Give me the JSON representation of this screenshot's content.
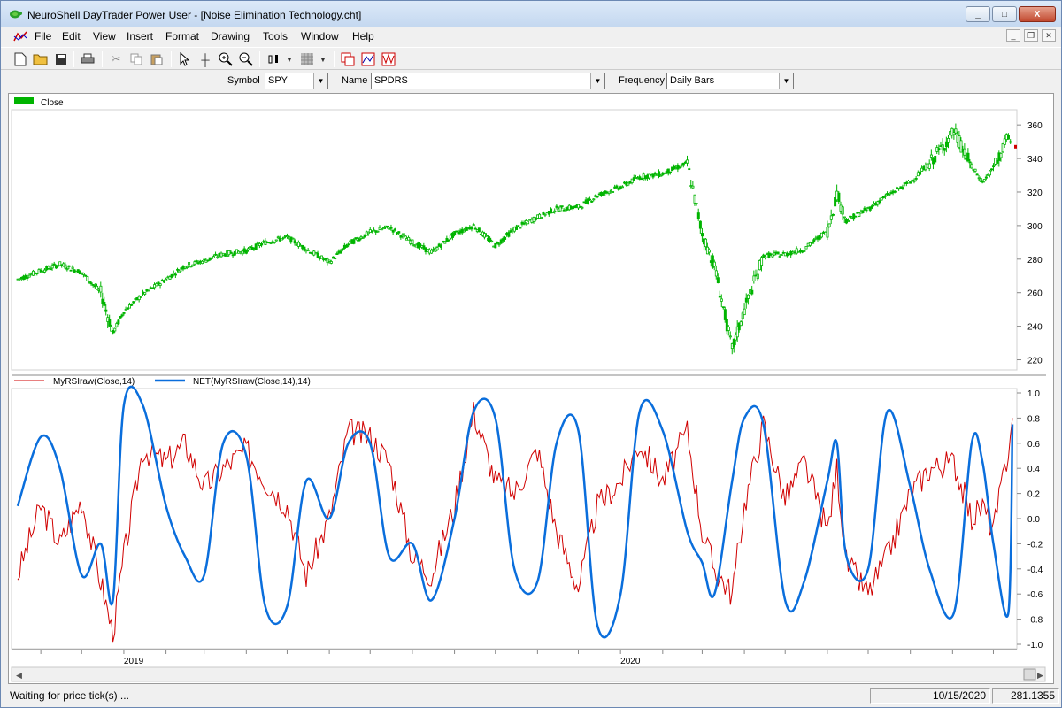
{
  "window": {
    "title": "NeuroShell DayTrader Power User - [Noise Elimination Technology.cht]",
    "minimize": "_",
    "maximize": "□",
    "close": "X"
  },
  "menu": [
    "File",
    "Edit",
    "View",
    "Insert",
    "Format",
    "Drawing",
    "Tools",
    "Window",
    "Help"
  ],
  "symbolbar": {
    "symbol_label": "Symbol",
    "symbol_value": "SPY",
    "name_label": "Name",
    "name_value": "SPDRS",
    "frequency_label": "Frequency",
    "frequency_value": "Daily Bars"
  },
  "status": {
    "message": "Waiting for price tick(s) ...",
    "date": "10/15/2020",
    "value": "281.1355"
  },
  "colors": {
    "price": "#00b400",
    "rsi": "#d00000",
    "net": "#0a6edc"
  },
  "chart_data": [
    {
      "type": "candlestick",
      "legend": [
        "Close"
      ],
      "ylim": [
        215,
        368
      ],
      "yticks": [
        220,
        240,
        260,
        280,
        300,
        320,
        340,
        360
      ],
      "x_labels": [
        "2019",
        "2020"
      ],
      "series": [
        {
          "name": "Close",
          "x": [
            "2018-10-15",
            "2018-11-01",
            "2018-11-15",
            "2018-12-01",
            "2018-12-15",
            "2018-12-24",
            "2019-01-01",
            "2019-01-15",
            "2019-02-01",
            "2019-02-15",
            "2019-03-01",
            "2019-03-15",
            "2019-04-01",
            "2019-04-15",
            "2019-05-01",
            "2019-05-15",
            "2019-06-01",
            "2019-06-15",
            "2019-07-01",
            "2019-07-15",
            "2019-08-01",
            "2019-08-15",
            "2019-09-01",
            "2019-09-15",
            "2019-10-01",
            "2019-10-15",
            "2019-11-01",
            "2019-11-15",
            "2019-12-01",
            "2019-12-15",
            "2020-01-01",
            "2020-01-15",
            "2020-02-01",
            "2020-02-19",
            "2020-03-01",
            "2020-03-10",
            "2020-03-23",
            "2020-04-01",
            "2020-04-15",
            "2020-05-01",
            "2020-05-15",
            "2020-06-01",
            "2020-06-08",
            "2020-06-15",
            "2020-07-01",
            "2020-07-15",
            "2020-08-01",
            "2020-08-15",
            "2020-09-02",
            "2020-09-15",
            "2020-09-23",
            "2020-10-01",
            "2020-10-12",
            "2020-10-15"
          ],
          "values": [
            268,
            273,
            277,
            272,
            260,
            236,
            249,
            259,
            268,
            276,
            279,
            283,
            285,
            290,
            293,
            286,
            278,
            289,
            296,
            299,
            290,
            284,
            295,
            300,
            288,
            298,
            305,
            310,
            311,
            318,
            323,
            329,
            331,
            337,
            295,
            276,
            226,
            250,
            282,
            283,
            286,
            297,
            319,
            303,
            310,
            318,
            326,
            337,
            356,
            335,
            326,
            334,
            353,
            347
          ]
        }
      ]
    },
    {
      "type": "line",
      "legend": [
        "MyRSIraw(Close,14)",
        "NET(MyRSIraw(Close,14),14)"
      ],
      "ylim": [
        -1.0,
        1.0
      ],
      "yticks": [
        1.0,
        0.8,
        0.6,
        0.4,
        0.2,
        0.0,
        -0.2,
        -0.4,
        -0.6,
        -0.8,
        -1.0
      ],
      "x_labels": [
        "2019",
        "2020"
      ],
      "series": [
        {
          "name": "MyRSIraw(Close,14)",
          "x": [
            "2018-10-15",
            "2018-11-01",
            "2018-11-15",
            "2018-12-01",
            "2018-12-15",
            "2018-12-24",
            "2019-01-01",
            "2019-01-15",
            "2019-02-01",
            "2019-02-15",
            "2019-03-01",
            "2019-03-15",
            "2019-04-01",
            "2019-04-15",
            "2019-05-01",
            "2019-05-15",
            "2019-06-01",
            "2019-06-15",
            "2019-07-01",
            "2019-07-15",
            "2019-08-01",
            "2019-08-15",
            "2019-09-01",
            "2019-09-15",
            "2019-10-01",
            "2019-10-15",
            "2019-11-01",
            "2019-11-15",
            "2019-12-01",
            "2019-12-15",
            "2020-01-01",
            "2020-01-15",
            "2020-02-01",
            "2020-02-19",
            "2020-03-01",
            "2020-03-10",
            "2020-03-23",
            "2020-04-01",
            "2020-04-15",
            "2020-05-01",
            "2020-05-15",
            "2020-06-01",
            "2020-06-08",
            "2020-06-15",
            "2020-07-01",
            "2020-07-15",
            "2020-08-01",
            "2020-08-15",
            "2020-09-02",
            "2020-09-15",
            "2020-09-23",
            "2020-10-01",
            "2020-10-12",
            "2020-10-15"
          ],
          "values": [
            -0.45,
            0.1,
            -0.2,
            0.15,
            -0.5,
            -0.92,
            -0.3,
            0.55,
            0.45,
            0.6,
            0.25,
            0.4,
            0.55,
            0.3,
            0.1,
            -0.45,
            0.0,
            0.7,
            0.65,
            0.45,
            -0.3,
            -0.45,
            0.1,
            0.85,
            0.3,
            0.2,
            0.55,
            -0.1,
            -0.55,
            0.1,
            0.3,
            0.6,
            0.3,
            0.7,
            -0.1,
            -0.4,
            -0.6,
            0.1,
            0.75,
            0.15,
            0.45,
            -0.1,
            0.4,
            -0.35,
            -0.6,
            -0.3,
            0.2,
            0.4,
            0.45,
            0.0,
            0.1,
            -0.1,
            0.55,
            0.8
          ]
        },
        {
          "name": "NET(MyRSIraw(Close,14),14)",
          "x": [
            "2018-10-15",
            "2018-11-01",
            "2018-11-15",
            "2018-12-01",
            "2018-12-15",
            "2018-12-24",
            "2019-01-01",
            "2019-01-15",
            "2019-02-01",
            "2019-02-15",
            "2019-03-01",
            "2019-03-15",
            "2019-04-01",
            "2019-04-15",
            "2019-05-01",
            "2019-05-15",
            "2019-06-01",
            "2019-06-15",
            "2019-07-01",
            "2019-07-15",
            "2019-08-01",
            "2019-08-15",
            "2019-09-01",
            "2019-09-15",
            "2019-10-01",
            "2019-10-15",
            "2019-11-01",
            "2019-11-15",
            "2019-12-01",
            "2019-12-15",
            "2020-01-01",
            "2020-01-15",
            "2020-02-01",
            "2020-02-19",
            "2020-03-01",
            "2020-03-10",
            "2020-03-23",
            "2020-04-01",
            "2020-04-15",
            "2020-05-01",
            "2020-05-15",
            "2020-06-01",
            "2020-06-08",
            "2020-06-15",
            "2020-07-01",
            "2020-07-15",
            "2020-08-01",
            "2020-08-15",
            "2020-09-02",
            "2020-09-15",
            "2020-09-23",
            "2020-10-01",
            "2020-10-12",
            "2020-10-15"
          ],
          "values": [
            0.1,
            0.65,
            0.4,
            -0.45,
            -0.2,
            -0.65,
            0.9,
            0.9,
            0.1,
            -0.3,
            -0.45,
            0.6,
            0.5,
            -0.7,
            -0.7,
            0.3,
            0.0,
            0.6,
            0.6,
            -0.3,
            -0.2,
            -0.65,
            0.0,
            0.85,
            0.8,
            -0.4,
            -0.5,
            0.6,
            0.7,
            -0.85,
            -0.6,
            0.85,
            0.7,
            -0.1,
            -0.35,
            -0.6,
            0.3,
            0.8,
            0.75,
            -0.65,
            -0.5,
            0.3,
            0.6,
            -0.3,
            -0.4,
            0.85,
            0.25,
            -0.4,
            -0.75,
            0.6,
            0.45,
            -0.2,
            -0.75,
            0.75
          ]
        }
      ]
    }
  ]
}
